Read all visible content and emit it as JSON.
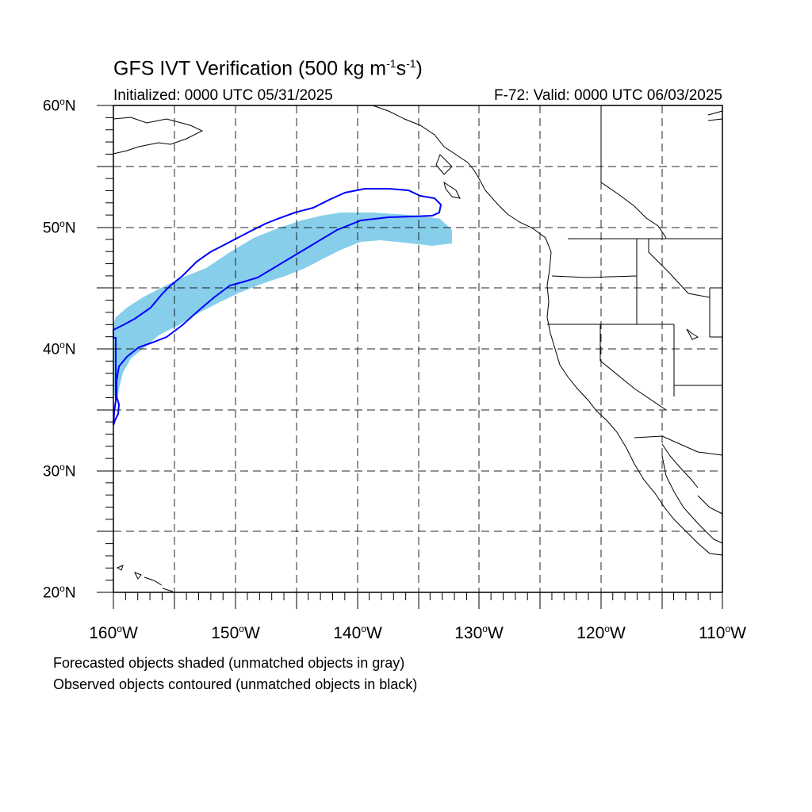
{
  "title": {
    "main": "GFS IVT Verification (500 kg m",
    "exp1": "-1",
    "mid": "s",
    "exp2": "-1",
    "end": ")"
  },
  "initialized": "Initialized: 0000 UTC 05/31/2025",
  "valid": "F-72: Valid: 0000 UTC 06/03/2025",
  "lat_labels": [
    {
      "num": "60",
      "sup": "o",
      "hemi": "N"
    },
    {
      "num": "50",
      "sup": "o",
      "hemi": "N"
    },
    {
      "num": "40",
      "sup": "o",
      "hemi": "N"
    },
    {
      "num": "30",
      "sup": "o",
      "hemi": "N"
    },
    {
      "num": "20",
      "sup": "o",
      "hemi": "N"
    }
  ],
  "lon_labels": [
    {
      "num": "160",
      "sup": "o",
      "hemi": "W"
    },
    {
      "num": "150",
      "sup": "o",
      "hemi": "W"
    },
    {
      "num": "140",
      "sup": "o",
      "hemi": "W"
    },
    {
      "num": "130",
      "sup": "o",
      "hemi": "W"
    },
    {
      "num": "120",
      "sup": "o",
      "hemi": "W"
    },
    {
      "num": "110",
      "sup": "o",
      "hemi": "W"
    }
  ],
  "notes": [
    "Forecasted objects shaded (unmatched objects in gray)",
    "Observed objects contoured (unmatched objects in black)"
  ],
  "map": {
    "lon_range": [
      -160,
      -110
    ],
    "lat_range": [
      20,
      60
    ],
    "grid_spacing_deg": 5,
    "grid_style": "dashed",
    "forecast_fill_color": "#87ceeb",
    "observed_contour_color": "#0000ff",
    "coastline_color": "#000000"
  }
}
